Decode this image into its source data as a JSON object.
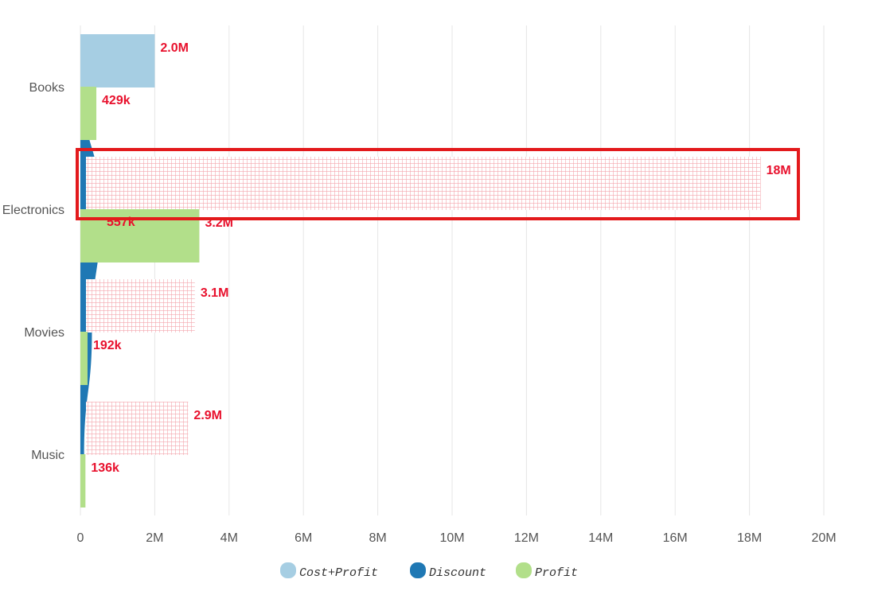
{
  "chart_data": {
    "type": "bar",
    "orientation": "horizontal",
    "categories": [
      "Books",
      "Electronics",
      "Movies",
      "Music"
    ],
    "x_ticks": [
      "0",
      "2M",
      "4M",
      "6M",
      "8M",
      "10M",
      "12M",
      "14M",
      "16M",
      "18M",
      "20M"
    ],
    "xlim": [
      0,
      20000000
    ],
    "grid": "vertical",
    "legend_position": "bottom",
    "series": [
      {
        "name": "Cost+Profit",
        "color": "#a6cee3",
        "values": [
          2000000,
          18300000,
          3080000,
          2900000
        ],
        "labels": [
          "2.0M",
          "18M",
          "3.1M",
          "2.9M"
        ],
        "pattern": [
          false,
          true,
          true,
          true
        ],
        "pattern_color": "#f4a6ad"
      },
      {
        "name": "Discount",
        "color": "#1f78b4",
        "values": [
          60000,
          557000,
          310000,
          100000
        ],
        "labels": [
          "",
          "557k",
          "",
          ""
        ],
        "shape": "area"
      },
      {
        "name": "Profit",
        "color": "#b2df8a",
        "values": [
          429000,
          3200000,
          192000,
          136000
        ],
        "labels": [
          "429k",
          "3.2M",
          "192k",
          "136k"
        ]
      }
    ],
    "highlight": {
      "category": "Electronics",
      "series": "Cost+Profit",
      "color": "#e31a1c"
    },
    "label_color": "#e8112d"
  }
}
